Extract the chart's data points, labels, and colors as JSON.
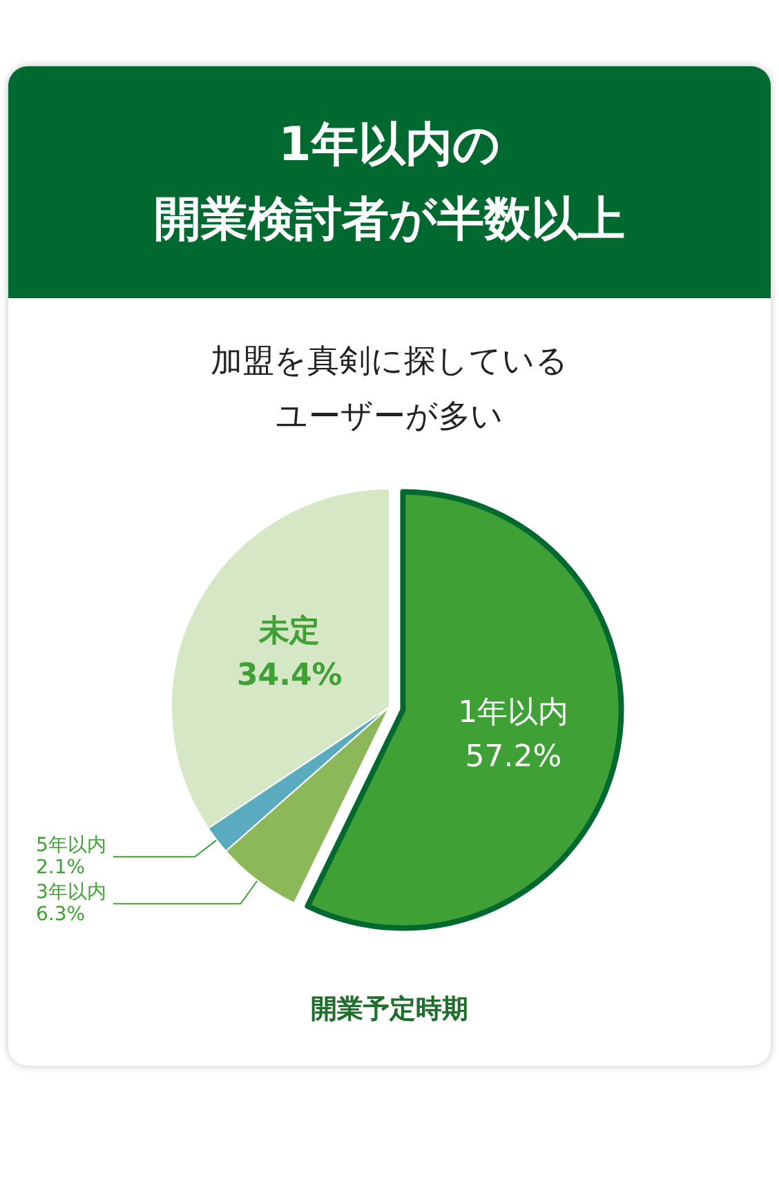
{
  "chart_data": {
    "type": "pie",
    "title": "1年以内の開業検討者が半数以上",
    "subtitle": "加盟を真剣に探しているユーザーが多い",
    "xlabel": "開業予定時期",
    "categories": [
      "1年以内",
      "3年以内",
      "5年以内",
      "未定"
    ],
    "values": [
      57.2,
      6.3,
      2.1,
      34.4
    ],
    "value_labels": [
      "57.2%",
      "6.3%",
      "2.1%",
      "34.4%"
    ],
    "colors": [
      "#3fa035",
      "#8cb85a",
      "#5aaac0",
      "#d5e7c4"
    ],
    "legend": false
  }
}
